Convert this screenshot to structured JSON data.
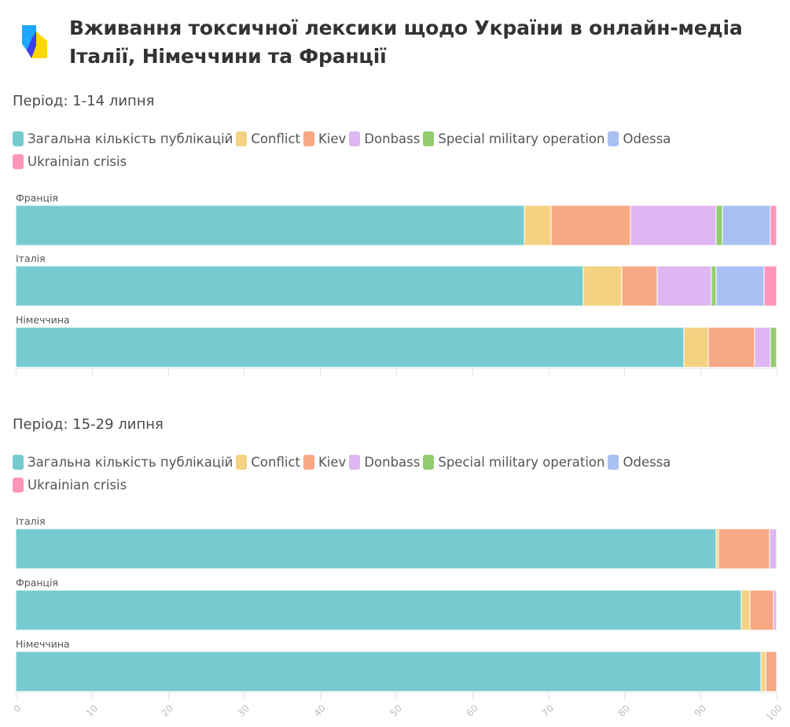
{
  "header": {
    "title": "Вживання токсичної лексики щодо України в онлайн-медіа Італії, Німеччини та Франції",
    "logo_icon": "brand-logo-icon"
  },
  "colors": {
    "total": "#76cbd0",
    "conflict": "#f5d282",
    "kiev": "#f8a885",
    "donbass": "#deb7f2",
    "smo": "#93cc6e",
    "odessa": "#a9c0f2",
    "crisis": "#ff95b9"
  },
  "chart_data": [
    {
      "type": "bar",
      "orientation": "horizontal",
      "stacked": true,
      "title": "Період: 1-14 липня",
      "categories": [
        "Франція",
        "Італія",
        "Німеччина"
      ],
      "legend": [
        "Загальна кількість публікацій",
        "Conflict",
        "Kiev",
        "Donbass",
        "Special military operation",
        "Odessa",
        "Ukrainian crisis"
      ],
      "legend_position": "top-left",
      "series": [
        {
          "name": "Загальна кількість публікацій",
          "key": "total",
          "values": [
            66.8,
            74.6,
            87.8
          ]
        },
        {
          "name": "Conflict",
          "key": "conflict",
          "values": [
            3.6,
            5.0,
            3.2
          ]
        },
        {
          "name": "Kiev",
          "key": "kiev",
          "values": [
            10.4,
            4.7,
            6.1
          ]
        },
        {
          "name": "Donbass",
          "key": "donbass",
          "values": [
            11.2,
            7.1,
            2.1
          ]
        },
        {
          "name": "Special military operation",
          "key": "smo",
          "values": [
            0.9,
            0.6,
            0.8
          ]
        },
        {
          "name": "Odessa",
          "key": "odessa",
          "values": [
            6.3,
            6.3,
            0
          ]
        },
        {
          "name": "Ukrainian crisis",
          "key": "crisis",
          "values": [
            0.8,
            1.7,
            0
          ]
        }
      ],
      "xlim": [
        0,
        100
      ],
      "xticks": [],
      "grid": false
    },
    {
      "type": "bar",
      "orientation": "horizontal",
      "stacked": true,
      "title": "Період: 15-29 липня",
      "categories": [
        "Італія",
        "Франція",
        "Німеччина"
      ],
      "legend": [
        "Загальна кількість публікацій",
        "Conflict",
        "Kiev",
        "Donbass",
        "Special military operation",
        "Odessa",
        "Ukrainian crisis"
      ],
      "legend_position": "top-left",
      "series": [
        {
          "name": "Загальна кількість публікацій",
          "key": "total",
          "values": [
            92.0,
            95.4,
            97.9
          ]
        },
        {
          "name": "Conflict",
          "key": "conflict",
          "values": [
            0.4,
            1.1,
            0.7
          ]
        },
        {
          "name": "Kiev",
          "key": "kiev",
          "values": [
            6.7,
            3.1,
            1.4
          ]
        },
        {
          "name": "Donbass",
          "key": "donbass",
          "values": [
            0.9,
            0.4,
            0
          ]
        },
        {
          "name": "Special military operation",
          "key": "smo",
          "values": [
            0,
            0,
            0
          ]
        },
        {
          "name": "Odessa",
          "key": "odessa",
          "values": [
            0,
            0,
            0
          ]
        },
        {
          "name": "Ukrainian crisis",
          "key": "crisis",
          "values": [
            0,
            0,
            0
          ]
        }
      ],
      "xlim": [
        0,
        100
      ],
      "xticks": [
        "0",
        "10",
        "20",
        "30",
        "40",
        "50",
        "60",
        "70",
        "80",
        "90",
        "100"
      ],
      "grid": false
    }
  ]
}
